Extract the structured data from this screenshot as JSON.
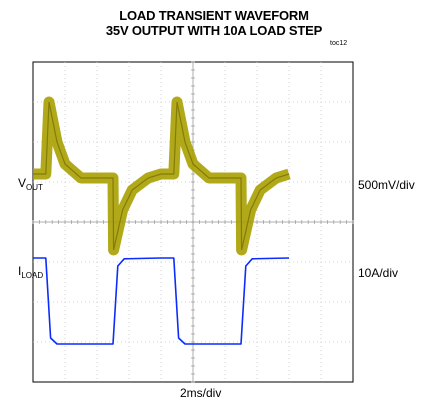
{
  "title_line1": "LOAD TRANSIENT WAVEFORM",
  "title_line2": "35V OUTPUT WITH 10A LOAD STEP",
  "figure_code": "toc12",
  "channels": [
    {
      "main": "V",
      "sub": "OUT",
      "scale": "500mV/div",
      "color": "#a8a000"
    },
    {
      "main": "I",
      "sub": "LOAD",
      "scale": "10A/div",
      "color": "#0a2cff"
    }
  ],
  "time_scale": "2ms/div",
  "chart_data": {
    "type": "line",
    "title": "LOAD TRANSIENT WAVEFORM 35V OUTPUT WITH 10A LOAD STEP",
    "xlabel": "2ms/div",
    "grid": true,
    "x_divisions": 10,
    "y_divisions": 8,
    "series": [
      {
        "name": "VOUT",
        "scale": "500mV/div",
        "color": "#a8a000",
        "points": [
          [
            0,
            5.2
          ],
          [
            0.4,
            5.2
          ],
          [
            0.5,
            7.0
          ],
          [
            0.75,
            6.0
          ],
          [
            1.0,
            5.45
          ],
          [
            1.5,
            5.1
          ],
          [
            2.0,
            5.1
          ],
          [
            2.5,
            5.1
          ],
          [
            2.52,
            3.3
          ],
          [
            2.8,
            4.3
          ],
          [
            3.1,
            4.8
          ],
          [
            3.6,
            5.1
          ],
          [
            4.0,
            5.2
          ],
          [
            4.4,
            5.2
          ],
          [
            4.5,
            7.0
          ],
          [
            4.75,
            6.0
          ],
          [
            5.0,
            5.45
          ],
          [
            5.5,
            5.1
          ],
          [
            6.0,
            5.1
          ],
          [
            6.5,
            5.1
          ],
          [
            6.52,
            3.3
          ],
          [
            6.8,
            4.3
          ],
          [
            7.1,
            4.8
          ],
          [
            7.6,
            5.1
          ],
          [
            8.0,
            5.2
          ]
        ]
      },
      {
        "name": "ILOAD",
        "scale": "10A/div",
        "color": "#0a2cff",
        "points": [
          [
            0,
            3.1
          ],
          [
            0.4,
            3.1
          ],
          [
            0.55,
            1.1
          ],
          [
            0.75,
            0.95
          ],
          [
            2.5,
            0.95
          ],
          [
            2.65,
            2.9
          ],
          [
            2.85,
            3.08
          ],
          [
            4.0,
            3.1
          ],
          [
            4.4,
            3.1
          ],
          [
            4.55,
            1.1
          ],
          [
            4.75,
            0.95
          ],
          [
            6.5,
            0.95
          ],
          [
            6.65,
            2.9
          ],
          [
            6.85,
            3.08
          ],
          [
            8.0,
            3.1
          ]
        ]
      }
    ]
  }
}
